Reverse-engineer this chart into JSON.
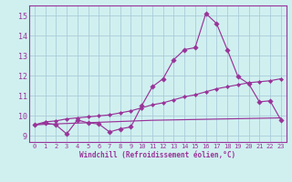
{
  "xlabel": "Windchill (Refroidissement éolien,°C)",
  "x_ticks": [
    0,
    1,
    2,
    3,
    4,
    5,
    6,
    7,
    8,
    9,
    10,
    11,
    12,
    13,
    14,
    15,
    16,
    17,
    18,
    19,
    20,
    21,
    22,
    23
  ],
  "ylim": [
    8.7,
    15.5
  ],
  "xlim": [
    -0.5,
    23.5
  ],
  "yticks": [
    9,
    10,
    11,
    12,
    13,
    14,
    15
  ],
  "bg_color": "#d0f0f0",
  "grid_color": "#a8c8d8",
  "line_color": "#993399",
  "line1_y": [
    9.55,
    9.65,
    9.55,
    9.1,
    9.8,
    9.65,
    9.6,
    9.2,
    9.35,
    9.45,
    10.5,
    11.45,
    11.85,
    12.8,
    13.3,
    13.4,
    15.1,
    14.6,
    13.3,
    11.95,
    11.6,
    10.7,
    10.75,
    9.8
  ],
  "line2_y": [
    9.55,
    9.7,
    9.75,
    9.85,
    9.9,
    9.95,
    10.0,
    10.05,
    10.15,
    10.25,
    10.4,
    10.55,
    10.65,
    10.8,
    10.95,
    11.05,
    11.2,
    11.35,
    11.45,
    11.55,
    11.65,
    11.7,
    11.75,
    11.85
  ],
  "line3_y": [
    9.55,
    9.58,
    9.6,
    9.62,
    9.64,
    9.66,
    9.68,
    9.7,
    9.72,
    9.74,
    9.76,
    9.78,
    9.79,
    9.8,
    9.81,
    9.82,
    9.83,
    9.84,
    9.85,
    9.86,
    9.87,
    9.88,
    9.89,
    9.9
  ]
}
